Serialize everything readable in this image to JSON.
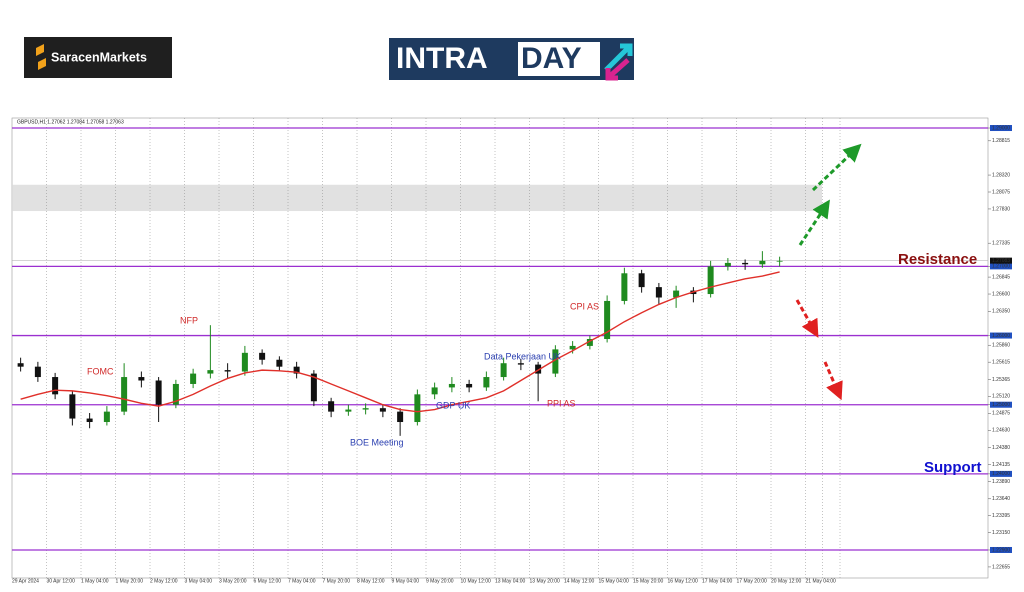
{
  "logo": {
    "left": "SaracenMarkets",
    "right_a": "INTRA",
    "right_b": "DAY"
  },
  "chart_data": {
    "type": "candlestick",
    "title": "GBPUSD,H1  1.27062 1.27084 1.27058 1.27063",
    "x_labels": [
      "29 Apr 2024",
      "30 Apr 12:00",
      "1 May 04:00",
      "1 May 20:00",
      "2 May 12:00",
      "3 May 04:00",
      "3 May 20:00",
      "6 May 12:00",
      "7 May 04:00",
      "7 May 20:00",
      "8 May 12:00",
      "9 May 04:00",
      "9 May 20:00",
      "10 May 12:00",
      "13 May 04:00",
      "13 May 20:00",
      "14 May 12:00",
      "15 May 04:00",
      "15 May 20:00",
      "16 May 12:00",
      "17 May 04:00",
      "17 May 20:00",
      "20 May 12:00",
      "21 May 04:00"
    ],
    "open": [
      1.256,
      1.2555,
      1.254,
      1.2515,
      1.248,
      1.2475,
      1.249,
      1.254,
      1.2535,
      1.25,
      1.253,
      1.2545,
      1.255,
      1.2548,
      1.2575,
      1.2565,
      1.2555,
      1.2545,
      1.2505,
      1.249,
      1.2493,
      1.2495,
      1.249,
      1.2475,
      1.2515,
      1.2525,
      1.253,
      1.2525,
      1.254,
      1.256,
      1.2558,
      1.2545,
      1.258,
      1.2585,
      1.2595,
      1.265,
      1.269,
      1.267,
      1.2655,
      1.2665,
      1.266,
      1.27,
      1.2705,
      1.2703,
      1.2708
    ],
    "high": [
      1.2568,
      1.2562,
      1.2546,
      1.252,
      1.2488,
      1.2498,
      1.256,
      1.2548,
      1.254,
      1.2536,
      1.2552,
      1.2615,
      1.256,
      1.2585,
      1.258,
      1.257,
      1.2562,
      1.255,
      1.251,
      1.25,
      1.2502,
      1.25,
      1.2495,
      1.2522,
      1.2532,
      1.254,
      1.2536,
      1.2548,
      1.2568,
      1.2566,
      1.2562,
      1.2586,
      1.2592,
      1.26,
      1.2658,
      1.2698,
      1.2695,
      1.2676,
      1.2672,
      1.267,
      1.2708,
      1.2712,
      1.271,
      1.2722,
      1.2714
    ],
    "low": [
      1.2548,
      1.2533,
      1.2508,
      1.247,
      1.2466,
      1.247,
      1.2485,
      1.2525,
      1.2475,
      1.2495,
      1.2524,
      1.2538,
      1.2538,
      1.2542,
      1.2558,
      1.2548,
      1.2538,
      1.2498,
      1.2482,
      1.2484,
      1.2486,
      1.2482,
      1.2455,
      1.247,
      1.2508,
      1.2518,
      1.2518,
      1.252,
      1.2535,
      1.255,
      1.2505,
      1.254,
      1.2574,
      1.258,
      1.259,
      1.2645,
      1.2662,
      1.2645,
      1.264,
      1.2648,
      1.2655,
      1.2694,
      1.2695,
      1.2698,
      1.27
    ],
    "close": [
      1.2555,
      1.254,
      1.2515,
      1.248,
      1.2475,
      1.249,
      1.254,
      1.2535,
      1.25,
      1.253,
      1.2545,
      1.255,
      1.2548,
      1.2575,
      1.2565,
      1.2555,
      1.2545,
      1.2505,
      1.249,
      1.2493,
      1.2495,
      1.249,
      1.2475,
      1.2515,
      1.2525,
      1.253,
      1.2525,
      1.254,
      1.256,
      1.2558,
      1.2545,
      1.258,
      1.2585,
      1.2595,
      1.265,
      1.269,
      1.267,
      1.2655,
      1.2665,
      1.266,
      1.27,
      1.2705,
      1.2703,
      1.2708,
      1.2708
    ],
    "moving_average": {
      "color": "#e0302a",
      "values": [
        1.2508,
        1.2515,
        1.2521,
        1.252,
        1.2517,
        1.2513,
        1.2508,
        1.2502,
        1.2498,
        1.2505,
        1.2515,
        1.2527,
        1.2538,
        1.2546,
        1.255,
        1.2549,
        1.2547,
        1.254,
        1.253,
        1.252,
        1.251,
        1.25,
        1.2493,
        1.249,
        1.2493,
        1.25,
        1.2505,
        1.251,
        1.252,
        1.2535,
        1.255,
        1.2565,
        1.2578,
        1.2592,
        1.2605,
        1.262,
        1.2633,
        1.2645,
        1.2655,
        1.2663,
        1.267,
        1.2676,
        1.2682,
        1.2686,
        1.2692
      ]
    },
    "up_color": "#1f8a1f",
    "down_color": "#111111",
    "level_color": "#9b30d0",
    "ylim": [
      1.22495,
      1.29087
    ],
    "yticks": [
      {
        "value": 1.29,
        "label": "1.29000"
      },
      {
        "value": 1.28815,
        "label": "1.28815"
      },
      {
        "value": 1.2832,
        "label": "1.28320"
      },
      {
        "value": 1.28075,
        "label": "1.28075"
      },
      {
        "value": 1.2783,
        "label": "1.27830"
      },
      {
        "value": 1.27335,
        "label": "1.27335"
      },
      {
        "value": 1.27,
        "label": "1.27000"
      },
      {
        "value": 1.26845,
        "label": "1.26845"
      },
      {
        "value": 1.266,
        "label": "1.26600"
      },
      {
        "value": 1.2635,
        "label": "1.26350"
      },
      {
        "value": 1.26,
        "label": "1.26000"
      },
      {
        "value": 1.2586,
        "label": "1.25860"
      },
      {
        "value": 1.25615,
        "label": "1.25615"
      },
      {
        "value": 1.25365,
        "label": "1.25365"
      },
      {
        "value": 1.2512,
        "label": "1.25120"
      },
      {
        "value": 1.25,
        "label": "1.25000"
      },
      {
        "value": 1.24875,
        "label": "1.24875"
      },
      {
        "value": 1.2463,
        "label": "1.24630"
      },
      {
        "value": 1.2438,
        "label": "1.24380"
      },
      {
        "value": 1.24135,
        "label": "1.24135"
      },
      {
        "value": 1.24,
        "label": "1.24000"
      },
      {
        "value": 1.2389,
        "label": "1.23890"
      },
      {
        "value": 1.2364,
        "label": "1.23640"
      },
      {
        "value": 1.23395,
        "label": "1.23395"
      },
      {
        "value": 1.2315,
        "label": "1.23150"
      },
      {
        "value": 1.229,
        "label": "1.22900"
      },
      {
        "value": 1.22655,
        "label": "1.22655"
      }
    ],
    "last_price": {
      "value": 1.27083,
      "label": "1.27083"
    },
    "levels": [
      1.29,
      1.27,
      1.26,
      1.25,
      1.24,
      1.229
    ],
    "zone": [
      1.278,
      1.2818
    ],
    "annotations": [
      "FOMC",
      "NFP",
      "BOE Meeting",
      "GDP UK",
      "Data Pekerjaan UK",
      "PPI AS",
      "CPI AS",
      "Resistance",
      "Support"
    ]
  }
}
